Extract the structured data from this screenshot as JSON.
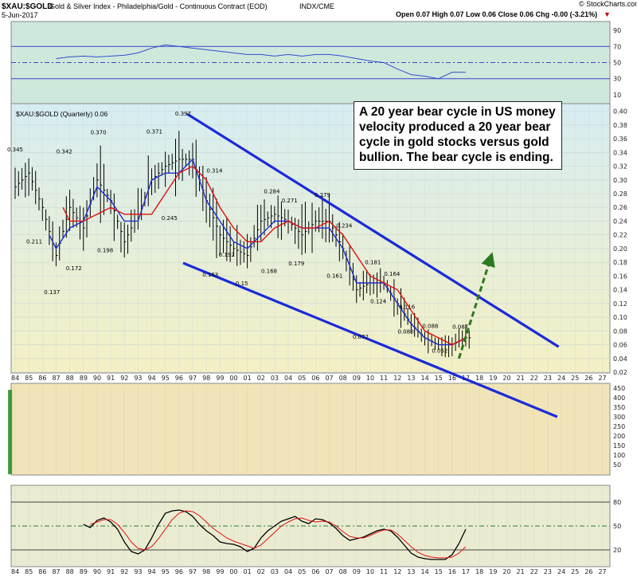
{
  "header": {
    "symbol": "$XAU:$GOLD",
    "description": "Gold & Silver Index - Philadelphia/Gold - Continuous Contract (EOD)",
    "exchange": "INDX/CME",
    "date": "5-Jun-2017",
    "ohlc": "Open 0.07   High 0.07   Low 0.06   Close 0.06   Chg -0.00 (-3.21%)",
    "credit": "© StockCharts.com"
  },
  "annotation": {
    "text": "A 20 year bear cycle in US money velocity produced a 20 year bear cycle in gold stocks versus gold bullion.  The bear cycle is ending."
  },
  "colors": {
    "top_panel_bg": "#cfe8dc",
    "main_panel_bg_top": "#d6edf2",
    "main_panel_bg_bottom": "#f4f0c4",
    "volume_panel_bg": "#f1e4b8",
    "bottom_panel_bg": "#eaecd2",
    "price_bars": "#000000",
    "ma_fast": "#1f2fd0",
    "ma_slow": "#e01010",
    "trend_lines": "#1c2bd6",
    "arrow": "#2a7a1e",
    "volume_bar": "#3a9a3a"
  },
  "chart_data": [
    {
      "panel": "top-indicator",
      "type": "line",
      "yticks": [
        90,
        70,
        50,
        30,
        10
      ],
      "reference_lines": [
        70,
        50,
        30
      ],
      "ylim": [
        0,
        100
      ],
      "series": [
        {
          "values_x": [
            1987,
            1988,
            1989,
            1990,
            1991,
            1992,
            1993,
            1994,
            1995,
            1996,
            1997,
            1998,
            1999,
            2000,
            2001,
            2002,
            2003,
            2004,
            2005,
            2006,
            2007,
            2008,
            2009,
            2010,
            2011,
            2012,
            2013,
            2014,
            2015,
            2016,
            2017
          ],
          "values": [
            55,
            57,
            58,
            57,
            58,
            59,
            62,
            68,
            72,
            70,
            68,
            66,
            64,
            62,
            60,
            60,
            58,
            60,
            58,
            60,
            60,
            58,
            55,
            52,
            50,
            42,
            35,
            33,
            30,
            38,
            38
          ]
        }
      ]
    },
    {
      "panel": "price",
      "type": "line",
      "title": "$XAU:$GOLD (Quarterly) 0.06",
      "ylim": [
        0.02,
        0.41
      ],
      "yticks": [
        0.4,
        0.38,
        0.36,
        0.34,
        0.32,
        0.3,
        0.28,
        0.26,
        0.24,
        0.22,
        0.2,
        0.18,
        0.16,
        0.14,
        0.12,
        0.1,
        0.08,
        0.06,
        0.04,
        0.02
      ],
      "x_tick_labels": [
        "84",
        "85",
        "86",
        "87",
        "88",
        "89",
        "90",
        "91",
        "92",
        "93",
        "94",
        "95",
        "96",
        "97",
        "98",
        "99",
        "00",
        "01",
        "02",
        "03",
        "04",
        "05",
        "06",
        "07",
        "08",
        "09",
        "10",
        "11",
        "12",
        "13",
        "14",
        "15",
        "16",
        "17",
        "18",
        "19",
        "20",
        "21",
        "22",
        "23",
        "24",
        "25",
        "26",
        "27"
      ],
      "series": [
        {
          "name": "price",
          "x": [
            1984,
            1985,
            1986,
            1987,
            1988,
            1989,
            1990,
            1991,
            1992,
            1993,
            1994,
            1995,
            1996,
            1997,
            1998,
            1999,
            2000,
            2001,
            2002,
            2003,
            2004,
            2005,
            2006,
            2007,
            2008,
            2009,
            2010,
            2011,
            2012,
            2013,
            2014,
            2015,
            2016,
            2017
          ],
          "values": [
            0.29,
            0.31,
            0.26,
            0.19,
            0.26,
            0.23,
            0.3,
            0.27,
            0.21,
            0.25,
            0.3,
            0.32,
            0.33,
            0.33,
            0.27,
            0.22,
            0.2,
            0.19,
            0.24,
            0.25,
            0.24,
            0.22,
            0.24,
            0.24,
            0.2,
            0.14,
            0.15,
            0.15,
            0.12,
            0.09,
            0.07,
            0.06,
            0.06,
            0.07
          ]
        },
        {
          "name": "ma_fast",
          "x": [
            1986.5,
            1987,
            1988,
            1989,
            1990,
            1991,
            1992,
            1993,
            1994,
            1995,
            1996,
            1997,
            1998,
            1999,
            2000,
            2001,
            2002,
            2003,
            2004,
            2005,
            2006,
            2007,
            2008,
            2009,
            2010,
            2011,
            2012,
            2013,
            2014,
            2015,
            2016,
            2017
          ],
          "values": [
            0.22,
            0.2,
            0.23,
            0.24,
            0.29,
            0.27,
            0.24,
            0.24,
            0.3,
            0.31,
            0.31,
            0.33,
            0.27,
            0.24,
            0.21,
            0.2,
            0.22,
            0.24,
            0.24,
            0.23,
            0.23,
            0.23,
            0.2,
            0.15,
            0.15,
            0.15,
            0.12,
            0.09,
            0.07,
            0.06,
            0.06,
            0.07
          ]
        },
        {
          "name": "ma_slow",
          "x": [
            1987.5,
            1988,
            1989,
            1990,
            1991,
            1992,
            1993,
            1994,
            1995,
            1996,
            1997,
            1998,
            1999,
            2000,
            2001,
            2002,
            2003,
            2004,
            2005,
            2006,
            2007,
            2008,
            2009,
            2010,
            2011,
            2012,
            2013,
            2014,
            2015,
            2016,
            2017
          ],
          "values": [
            0.26,
            0.24,
            0.24,
            0.25,
            0.26,
            0.25,
            0.25,
            0.25,
            0.28,
            0.31,
            0.32,
            0.3,
            0.26,
            0.23,
            0.21,
            0.21,
            0.23,
            0.24,
            0.23,
            0.23,
            0.24,
            0.22,
            0.19,
            0.16,
            0.15,
            0.14,
            0.11,
            0.08,
            0.07,
            0.06,
            0.07
          ]
        }
      ],
      "data_labels": [
        {
          "x": 1984.0,
          "y": 0.345,
          "text": "0.345"
        },
        {
          "x": 1985.4,
          "y": 0.211,
          "text": "0.211"
        },
        {
          "x": 1986.7,
          "y": 0.137,
          "text": "0.137"
        },
        {
          "x": 1987.6,
          "y": 0.342,
          "text": "0.342"
        },
        {
          "x": 1988.3,
          "y": 0.172,
          "text": "0.172"
        },
        {
          "x": 1990.1,
          "y": 0.37,
          "text": "0.370"
        },
        {
          "x": 1990.6,
          "y": 0.198,
          "text": "0.198"
        },
        {
          "x": 1994.2,
          "y": 0.371,
          "text": "0.371"
        },
        {
          "x": 1995.3,
          "y": 0.245,
          "text": "0.245"
        },
        {
          "x": 1996.3,
          "y": 0.397,
          "text": "0.397"
        },
        {
          "x": 1998.6,
          "y": 0.314,
          "text": "0.314"
        },
        {
          "x": 1998.3,
          "y": 0.163,
          "text": "0.163"
        },
        {
          "x": 1999.5,
          "y": 0.192,
          "text": "0.192"
        },
        {
          "x": 2000.6,
          "y": 0.15,
          "text": "0.15"
        },
        {
          "x": 2002.8,
          "y": 0.284,
          "text": "0.284"
        },
        {
          "x": 2002.6,
          "y": 0.168,
          "text": "0.168"
        },
        {
          "x": 2004.1,
          "y": 0.271,
          "text": "0.271"
        },
        {
          "x": 2004.6,
          "y": 0.179,
          "text": "0.179"
        },
        {
          "x": 2006.5,
          "y": 0.279,
          "text": "0.279"
        },
        {
          "x": 2007.4,
          "y": 0.161,
          "text": "0.161"
        },
        {
          "x": 2008.1,
          "y": 0.234,
          "text": "0.234"
        },
        {
          "x": 2009.3,
          "y": 0.072,
          "text": "0.072"
        },
        {
          "x": 2010.2,
          "y": 0.181,
          "text": "0.181"
        },
        {
          "x": 2010.6,
          "y": 0.124,
          "text": "0.124"
        },
        {
          "x": 2011.6,
          "y": 0.164,
          "text": "0.164"
        },
        {
          "x": 2012.7,
          "y": 0.116,
          "text": "0.116"
        },
        {
          "x": 2012.6,
          "y": 0.08,
          "text": "0.080"
        },
        {
          "x": 2014.4,
          "y": 0.088,
          "text": "0.088"
        },
        {
          "x": 2015.1,
          "y": 0.052,
          "text": "0.052"
        },
        {
          "x": 2016.6,
          "y": 0.087,
          "text": "0.087"
        }
      ],
      "trend_lines": [
        {
          "from": [
            1996.6,
            0.396
          ],
          "to": [
            2023.8,
            0.057
          ]
        },
        {
          "from": [
            1996.3,
            0.179
          ],
          "to": [
            2023.7,
            -0.045
          ]
        }
      ],
      "arrow": {
        "from": [
          2016.5,
          0.04
        ],
        "to": [
          2018.8,
          0.185
        ]
      }
    },
    {
      "panel": "volume",
      "type": "bar",
      "yticks": [
        450,
        400,
        350,
        300,
        250,
        200,
        150,
        100,
        50
      ],
      "ylim": [
        0,
        470
      ],
      "bar": {
        "x": 1983.6,
        "value": 440
      }
    },
    {
      "panel": "bottom-oscillator",
      "type": "line",
      "yticks": [
        80,
        50,
        20
      ],
      "reference_lines": [
        80,
        50,
        20
      ],
      "ylim": [
        0,
        100
      ],
      "series": [
        {
          "name": "fast",
          "x": [
            1989,
            1989.5,
            1990,
            1990.5,
            1991,
            1991.5,
            1992,
            1992.5,
            1993,
            1993.5,
            1994,
            1994.5,
            1995,
            1995.5,
            1996,
            1996.5,
            1997,
            1997.5,
            1998,
            1998.5,
            1999,
            1999.5,
            2000,
            2000.5,
            2001,
            2001.5,
            2002,
            2002.5,
            2003,
            2003.5,
            2004,
            2004.5,
            2005,
            2005.5,
            2006,
            2006.5,
            2007,
            2007.5,
            2008,
            2008.5,
            2009,
            2009.5,
            2010,
            2010.5,
            2011,
            2011.5,
            2012,
            2012.5,
            2013,
            2013.5,
            2014,
            2014.5,
            2015,
            2015.5,
            2016,
            2016.5,
            2017
          ],
          "values": [
            52,
            48,
            57,
            60,
            55,
            46,
            30,
            18,
            15,
            20,
            35,
            52,
            66,
            69,
            70,
            68,
            62,
            52,
            44,
            38,
            30,
            28,
            27,
            24,
            18,
            22,
            35,
            44,
            50,
            56,
            59,
            62,
            56,
            53,
            59,
            58,
            54,
            47,
            38,
            32,
            34,
            36,
            40,
            44,
            46,
            44,
            36,
            26,
            16,
            11,
            9,
            8,
            8,
            8,
            14,
            28,
            46
          ]
        },
        {
          "name": "slow",
          "x": [
            1989.5,
            1990,
            1990.5,
            1991,
            1991.5,
            1992,
            1992.5,
            1993,
            1993.5,
            1994,
            1994.5,
            1995,
            1995.5,
            1996,
            1996.5,
            1997,
            1997.5,
            1998,
            1998.5,
            1999,
            1999.5,
            2000,
            2000.5,
            2001,
            2001.5,
            2002,
            2002.5,
            2003,
            2003.5,
            2004,
            2004.5,
            2005,
            2005.5,
            2006,
            2006.5,
            2007,
            2007.5,
            2008,
            2008.5,
            2009,
            2009.5,
            2010,
            2010.5,
            2011,
            2011.5,
            2012,
            2012.5,
            2013,
            2013.5,
            2014,
            2014.5,
            2015,
            2015.5,
            2016,
            2016.5,
            2017
          ],
          "values": [
            52,
            55,
            58,
            58,
            52,
            42,
            30,
            22,
            20,
            24,
            34,
            46,
            58,
            66,
            69,
            68,
            63,
            55,
            47,
            41,
            35,
            31,
            28,
            25,
            22,
            26,
            34,
            42,
            50,
            55,
            59,
            60,
            57,
            55,
            56,
            55,
            50,
            43,
            37,
            35,
            35,
            38,
            42,
            45,
            45,
            40,
            32,
            24,
            17,
            13,
            11,
            10,
            10,
            11,
            16,
            24
          ]
        }
      ]
    }
  ]
}
